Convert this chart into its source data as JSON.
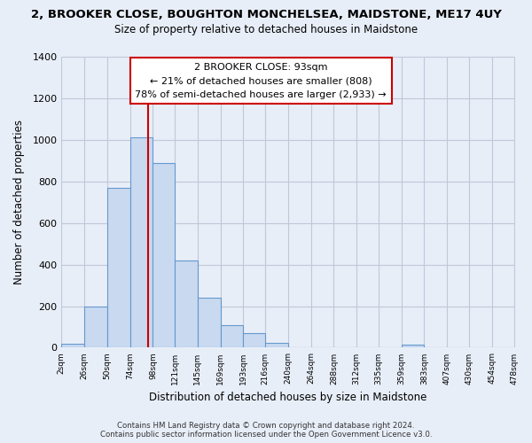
{
  "title_line1": "2, BROOKER CLOSE, BOUGHTON MONCHELSEA, MAIDSTONE, ME17 4UY",
  "title_line2": "Size of property relative to detached houses in Maidstone",
  "xlabel": "Distribution of detached houses by size in Maidstone",
  "ylabel": "Number of detached properties",
  "bin_labels": [
    "2sqm",
    "26sqm",
    "50sqm",
    "74sqm",
    "98sqm",
    "121sqm",
    "145sqm",
    "169sqm",
    "193sqm",
    "216sqm",
    "240sqm",
    "264sqm",
    "288sqm",
    "312sqm",
    "335sqm",
    "359sqm",
    "383sqm",
    "407sqm",
    "430sqm",
    "454sqm",
    "478sqm"
  ],
  "bin_edges": [
    2,
    26,
    50,
    74,
    98,
    121,
    145,
    169,
    193,
    216,
    240,
    264,
    288,
    312,
    335,
    359,
    383,
    407,
    430,
    454,
    478
  ],
  "bar_heights": [
    20,
    200,
    770,
    1010,
    890,
    420,
    240,
    110,
    70,
    25,
    0,
    0,
    0,
    0,
    0,
    15,
    0,
    0,
    0,
    0
  ],
  "bar_color": "#c8d9f0",
  "bar_edge_color": "#6699cc",
  "vline_x": 93,
  "vline_color": "#cc0000",
  "annotation_title": "2 BROOKER CLOSE: 93sqm",
  "annotation_line2": "← 21% of detached houses are smaller (808)",
  "annotation_line3": "78% of semi-detached houses are larger (2,933) →",
  "annotation_box_color": "#ffffff",
  "annotation_box_edge": "#cc0000",
  "ylim": [
    0,
    1400
  ],
  "yticks": [
    0,
    200,
    400,
    600,
    800,
    1000,
    1200,
    1400
  ],
  "footer_line1": "Contains HM Land Registry data © Crown copyright and database right 2024.",
  "footer_line2": "Contains public sector information licensed under the Open Government Licence v3.0.",
  "grid_color": "#c0c8d8",
  "background_color": "#e8eef8"
}
